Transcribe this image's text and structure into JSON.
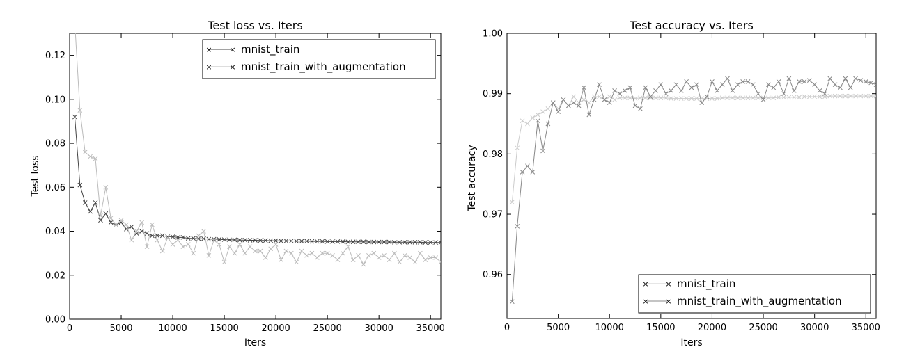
{
  "chart_data": [
    {
      "type": "line",
      "title": "Test loss  vs. Iters",
      "xlabel": "Iters",
      "ylabel": "Test loss",
      "xlim": [
        0,
        36000
      ],
      "ylim": [
        0,
        0.13
      ],
      "xticks": [
        0,
        5000,
        10000,
        15000,
        20000,
        25000,
        30000,
        35000
      ],
      "xtick_labels": [
        "0",
        "5000",
        "10000",
        "15000",
        "20000",
        "25000",
        "30000",
        "35000"
      ],
      "yticks": [
        0.0,
        0.02,
        0.04,
        0.06,
        0.08,
        0.1,
        0.12
      ],
      "ytick_labels": [
        "0.00",
        "0.02",
        "0.04",
        "0.06",
        "0.08",
        "0.10",
        "0.12"
      ],
      "legend_position": "top-right",
      "series": [
        {
          "name": "mnist_train",
          "color": "#444444",
          "x": [
            500,
            1000,
            1500,
            2000,
            2500,
            3000,
            3500,
            4000,
            4500,
            5000,
            5500,
            6000,
            6500,
            7000,
            7500,
            8000,
            8500,
            9000,
            9500,
            10000,
            10500,
            11000,
            11500,
            12000,
            12500,
            13000,
            13500,
            14000,
            14500,
            15000,
            15500,
            16000,
            16500,
            17000,
            17500,
            18000,
            18500,
            19000,
            19500,
            20000,
            20500,
            21000,
            21500,
            22000,
            22500,
            23000,
            23500,
            24000,
            24500,
            25000,
            25500,
            26000,
            26500,
            27000,
            27500,
            28000,
            28500,
            29000,
            29500,
            30000,
            30500,
            31000,
            31500,
            32000,
            32500,
            33000,
            33500,
            34000,
            34500,
            35000,
            35500,
            36000
          ],
          "y": [
            0.092,
            0.061,
            0.053,
            0.049,
            0.053,
            0.045,
            0.048,
            0.044,
            0.043,
            0.044,
            0.041,
            0.042,
            0.039,
            0.04,
            0.039,
            0.038,
            0.038,
            0.038,
            0.0375,
            0.0375,
            0.0372,
            0.0372,
            0.0368,
            0.0368,
            0.0366,
            0.0366,
            0.0364,
            0.0364,
            0.0363,
            0.0362,
            0.0361,
            0.0361,
            0.036,
            0.036,
            0.0359,
            0.0359,
            0.0358,
            0.0358,
            0.0357,
            0.0357,
            0.0356,
            0.0356,
            0.0356,
            0.0355,
            0.0355,
            0.0355,
            0.0354,
            0.0354,
            0.0354,
            0.0353,
            0.0353,
            0.0353,
            0.0353,
            0.0352,
            0.0352,
            0.0352,
            0.0352,
            0.0351,
            0.0351,
            0.0351,
            0.0351,
            0.0351,
            0.035,
            0.035,
            0.035,
            0.035,
            0.035,
            0.035,
            0.0349,
            0.0349,
            0.0349,
            0.0349
          ]
        },
        {
          "name": "mnist_train_with_augmentation",
          "color": "#bbbbbb",
          "x": [
            500,
            1000,
            1500,
            2000,
            2500,
            3000,
            3500,
            4000,
            4500,
            5000,
            5500,
            6000,
            6500,
            7000,
            7500,
            8000,
            8500,
            9000,
            9500,
            10000,
            10500,
            11000,
            11500,
            12000,
            12500,
            13000,
            13500,
            14000,
            14500,
            15000,
            15500,
            16000,
            16500,
            17000,
            17500,
            18000,
            18500,
            19000,
            19500,
            20000,
            20500,
            21000,
            21500,
            22000,
            22500,
            23000,
            23500,
            24000,
            24500,
            25000,
            25500,
            26000,
            26500,
            27000,
            27500,
            28000,
            28500,
            29000,
            29500,
            30000,
            30500,
            31000,
            31500,
            32000,
            32500,
            33000,
            33500,
            34000,
            34500,
            35000,
            35500,
            36000
          ],
          "y": [
            0.135,
            0.095,
            0.076,
            0.074,
            0.073,
            0.047,
            0.06,
            0.046,
            0.043,
            0.045,
            0.043,
            0.036,
            0.04,
            0.044,
            0.033,
            0.043,
            0.036,
            0.031,
            0.037,
            0.034,
            0.036,
            0.033,
            0.034,
            0.03,
            0.038,
            0.04,
            0.029,
            0.036,
            0.034,
            0.026,
            0.033,
            0.03,
            0.034,
            0.03,
            0.033,
            0.031,
            0.031,
            0.028,
            0.032,
            0.034,
            0.027,
            0.031,
            0.03,
            0.026,
            0.031,
            0.029,
            0.03,
            0.028,
            0.03,
            0.03,
            0.029,
            0.027,
            0.03,
            0.033,
            0.027,
            0.029,
            0.025,
            0.029,
            0.03,
            0.028,
            0.029,
            0.027,
            0.03,
            0.026,
            0.029,
            0.028,
            0.026,
            0.03,
            0.027,
            0.028,
            0.028,
            0.026
          ]
        }
      ]
    },
    {
      "type": "line",
      "title": "Test accuracy  vs. Iters",
      "xlabel": "Iters",
      "ylabel": "Test accuracy",
      "xlim": [
        0,
        36000
      ],
      "ylim": [
        0.9527,
        1.0
      ],
      "xticks": [
        0,
        5000,
        10000,
        15000,
        20000,
        25000,
        30000,
        35000
      ],
      "xtick_labels": [
        "0",
        "5000",
        "10000",
        "15000",
        "20000",
        "25000",
        "30000",
        "35000"
      ],
      "yticks": [
        0.96,
        0.97,
        0.98,
        0.99,
        1.0
      ],
      "ytick_labels": [
        "0.96",
        "0.97",
        "0.98",
        "0.99",
        "1.00"
      ],
      "legend_position": "bottom-right",
      "series": [
        {
          "name": "mnist_train",
          "color": "#cccccc",
          "x": [
            500,
            1000,
            1500,
            2000,
            2500,
            3000,
            3500,
            4000,
            4500,
            5000,
            5500,
            6000,
            6500,
            7000,
            7500,
            8000,
            8500,
            9000,
            9500,
            10000,
            10500,
            11000,
            11500,
            12000,
            12500,
            13000,
            13500,
            14000,
            14500,
            15000,
            15500,
            16000,
            16500,
            17000,
            17500,
            18000,
            18500,
            19000,
            19500,
            20000,
            20500,
            21000,
            21500,
            22000,
            22500,
            23000,
            23500,
            24000,
            24500,
            25000,
            25500,
            26000,
            26500,
            27000,
            27500,
            28000,
            28500,
            29000,
            29500,
            30000,
            30500,
            31000,
            31500,
            32000,
            32500,
            33000,
            33500,
            34000,
            34500,
            35000,
            35500,
            36000
          ],
          "y": [
            0.972,
            0.981,
            0.9855,
            0.985,
            0.986,
            0.9865,
            0.987,
            0.9875,
            0.9885,
            0.9875,
            0.989,
            0.988,
            0.9895,
            0.9885,
            0.989,
            0.9885,
            0.9895,
            0.9895,
            0.989,
            0.9895,
            0.989,
            0.9893,
            0.9893,
            0.9893,
            0.9892,
            0.9893,
            0.9893,
            0.9893,
            0.9893,
            0.9893,
            0.9893,
            0.9892,
            0.9892,
            0.9892,
            0.9892,
            0.9892,
            0.9892,
            0.9892,
            0.9892,
            0.9892,
            0.9892,
            0.9893,
            0.9893,
            0.9893,
            0.9893,
            0.9893,
            0.9893,
            0.9893,
            0.9893,
            0.9893,
            0.9893,
            0.9893,
            0.9894,
            0.9894,
            0.9894,
            0.9894,
            0.9894,
            0.9895,
            0.9895,
            0.9895,
            0.9895,
            0.9895,
            0.9896,
            0.9896,
            0.9896,
            0.9896,
            0.9896,
            0.9896,
            0.9896,
            0.9896,
            0.9896,
            0.9896
          ]
        },
        {
          "name": "mnist_train_with_augmentation",
          "color": "#888888",
          "x": [
            500,
            1000,
            1500,
            2000,
            2500,
            3000,
            3500,
            4000,
            4500,
            5000,
            5500,
            6000,
            6500,
            7000,
            7500,
            8000,
            8500,
            9000,
            9500,
            10000,
            10500,
            11000,
            11500,
            12000,
            12500,
            13000,
            13500,
            14000,
            14500,
            15000,
            15500,
            16000,
            16500,
            17000,
            17500,
            18000,
            18500,
            19000,
            19500,
            20000,
            20500,
            21000,
            21500,
            22000,
            22500,
            23000,
            23500,
            24000,
            24500,
            25000,
            25500,
            26000,
            26500,
            27000,
            27500,
            28000,
            28500,
            29000,
            29500,
            30000,
            30500,
            31000,
            31500,
            32000,
            32500,
            33000,
            33500,
            34000,
            34500,
            35000,
            35500,
            36000
          ],
          "y": [
            0.9555,
            0.968,
            0.977,
            0.978,
            0.977,
            0.9855,
            0.9805,
            0.985,
            0.9885,
            0.987,
            0.989,
            0.988,
            0.9885,
            0.988,
            0.991,
            0.9865,
            0.989,
            0.9915,
            0.989,
            0.9885,
            0.9905,
            0.99,
            0.9905,
            0.991,
            0.988,
            0.9875,
            0.991,
            0.9895,
            0.9905,
            0.9915,
            0.99,
            0.9905,
            0.9915,
            0.9905,
            0.992,
            0.991,
            0.9915,
            0.9885,
            0.9895,
            0.992,
            0.9905,
            0.9915,
            0.9925,
            0.9905,
            0.9915,
            0.992,
            0.992,
            0.9915,
            0.99,
            0.989,
            0.9915,
            0.991,
            0.992,
            0.99,
            0.9925,
            0.9905,
            0.992,
            0.992,
            0.9922,
            0.9915,
            0.9905,
            0.99,
            0.9925,
            0.9915,
            0.991,
            0.9925,
            0.991,
            0.9925,
            0.9922,
            0.992,
            0.9918,
            0.9915
          ]
        }
      ]
    }
  ]
}
